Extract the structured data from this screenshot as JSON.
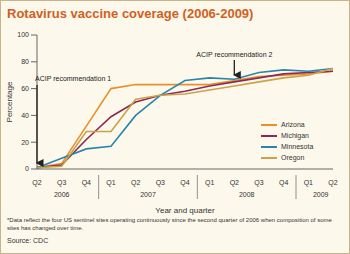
{
  "chart_data": {
    "type": "line",
    "title": "Rotavirus vaccine coverage (2006-2009)",
    "x_label": "Year and quarter",
    "y_label": "Percentage",
    "categories": [
      "Q2",
      "Q3",
      "Q4",
      "Q1",
      "Q2",
      "Q3",
      "Q4",
      "Q1",
      "Q2",
      "Q3",
      "Q4",
      "Q1",
      "Q2"
    ],
    "category_years": [
      "2006",
      "2006",
      "2006",
      "2007",
      "2007",
      "2007",
      "2007",
      "2008",
      "2008",
      "2008",
      "2008",
      "2009",
      "2009"
    ],
    "series": [
      {
        "name": "Arizona",
        "color": "#e8912c",
        "values": [
          1,
          4,
          32,
          60,
          63,
          63,
          63,
          63,
          66,
          69,
          70,
          71,
          73
        ]
      },
      {
        "name": "Michigan",
        "color": "#8c2a54",
        "values": [
          1,
          3,
          22,
          39,
          50,
          55,
          58,
          62,
          65,
          68,
          71,
          72,
          73
        ]
      },
      {
        "name": "Minnesota",
        "color": "#2a86a8",
        "values": [
          1,
          8,
          15,
          17,
          40,
          55,
          66,
          68,
          67,
          72,
          74,
          73,
          75
        ]
      },
      {
        "name": "Oregon",
        "color": "#c9a24a",
        "values": [
          1,
          2,
          28,
          28,
          52,
          55,
          56,
          59,
          62,
          65,
          68,
          70,
          75
        ]
      }
    ],
    "ylim": [
      0,
      100
    ],
    "yticks": [
      0,
      20,
      40,
      60,
      80,
      100
    ],
    "grid": false,
    "legend": "lower right",
    "annotations": [
      {
        "text": "ACIP recommendation 1",
        "category": "Q2",
        "year": "2006"
      },
      {
        "text": "ACIP recommendation 2",
        "category": "Q2",
        "year": "2008"
      }
    ],
    "footnote": "*Data reflect the four US sentinel sites operating continuously since the second quarter of 2006 when composition of some sites has changed over time.",
    "source": "Source: CDC"
  }
}
